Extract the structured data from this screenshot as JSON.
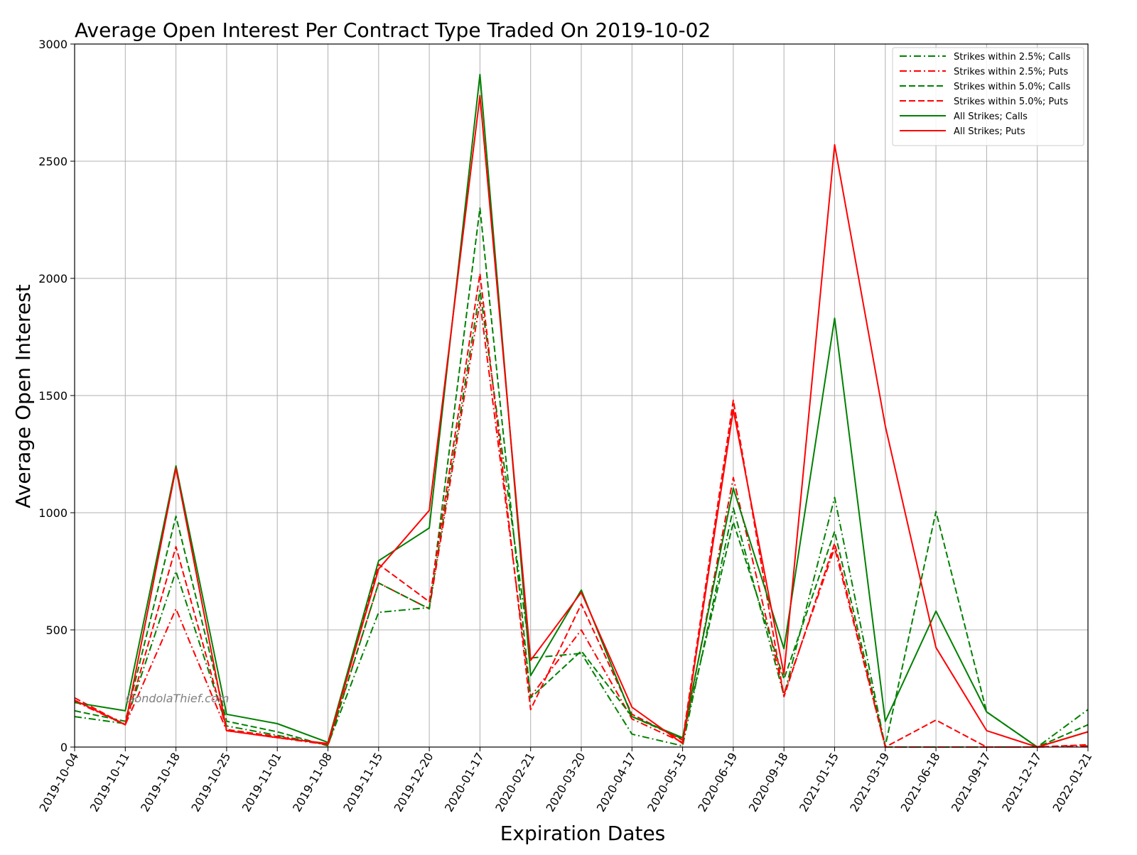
{
  "chart_data": {
    "type": "line",
    "title": "Average Open Interest Per Contract Type Traded On 2019-10-02",
    "xlabel": "Expiration Dates",
    "ylabel": "Average Open Interest",
    "watermark": "GondolaThief.com",
    "ylim": [
      0,
      3000
    ],
    "yticks": [
      0,
      500,
      1000,
      1500,
      2000,
      2500,
      3000
    ],
    "grid": true,
    "legend_position": "top-right",
    "categories": [
      "2019-10-04",
      "2019-10-11",
      "2019-10-18",
      "2019-10-25",
      "2019-11-01",
      "2019-11-08",
      "2019-11-15",
      "2019-12-20",
      "2020-01-17",
      "2020-02-21",
      "2020-03-20",
      "2020-04-17",
      "2020-05-15",
      "2020-06-19",
      "2020-09-18",
      "2021-01-15",
      "2021-03-19",
      "2021-06-18",
      "2021-09-17",
      "2021-12-17",
      "2022-01-21"
    ],
    "series": [
      {
        "name": "Strikes within 2.5%; Calls",
        "color": "#008000",
        "dash": "dashdot",
        "values": [
          130,
          100,
          750,
          90,
          50,
          10,
          575,
          595,
          1950,
          380,
          400,
          55,
          5,
          1020,
          220,
          1065,
          0,
          0,
          0,
          0,
          160
        ]
      },
      {
        "name": "Strikes within 2.5%; Puts",
        "color": "#ff0000",
        "dash": "dashdot",
        "values": [
          195,
          95,
          590,
          70,
          40,
          10,
          700,
          590,
          1900,
          215,
          500,
          120,
          20,
          1150,
          225,
          850,
          0,
          0,
          0,
          0,
          5
        ]
      },
      {
        "name": "Strikes within 5.0%; Calls",
        "color": "#008000",
        "dash": "dashed",
        "values": [
          155,
          110,
          985,
          110,
          65,
          5,
          700,
          590,
          2300,
          210,
          410,
          130,
          35,
          960,
          290,
          920,
          5,
          1005,
          150,
          0,
          95
        ]
      },
      {
        "name": "Strikes within 5.0%; Puts",
        "color": "#ff0000",
        "dash": "dashed",
        "values": [
          210,
          95,
          855,
          75,
          45,
          10,
          780,
          620,
          2020,
          160,
          610,
          140,
          30,
          1480,
          215,
          870,
          0,
          115,
          0,
          0,
          10
        ]
      },
      {
        "name": "All Strikes; Calls",
        "color": "#008000",
        "dash": "solid",
        "values": [
          190,
          155,
          1200,
          140,
          100,
          20,
          795,
          935,
          2870,
          305,
          670,
          130,
          40,
          1105,
          420,
          1830,
          110,
          580,
          150,
          0,
          65
        ]
      },
      {
        "name": "All Strikes; Puts",
        "color": "#ff0000",
        "dash": "solid",
        "values": [
          200,
          95,
          1190,
          70,
          40,
          15,
          760,
          1010,
          2780,
          370,
          660,
          170,
          15,
          1440,
          310,
          2570,
          1370,
          425,
          70,
          0,
          65
        ]
      }
    ]
  }
}
